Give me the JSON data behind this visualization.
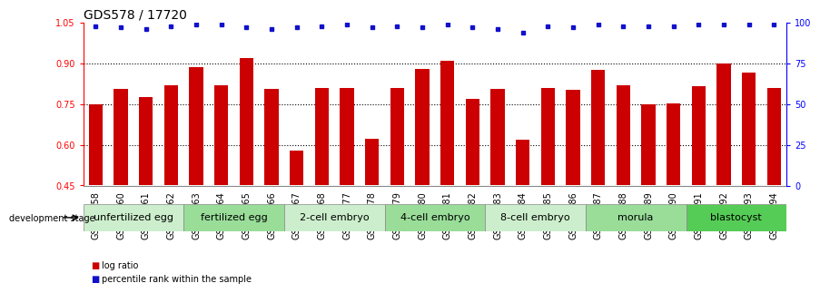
{
  "title": "GDS578 / 17720",
  "samples": [
    "GSM14658",
    "GSM14660",
    "GSM14661",
    "GSM14662",
    "GSM14663",
    "GSM14664",
    "GSM14665",
    "GSM14666",
    "GSM14667",
    "GSM14668",
    "GSM14677",
    "GSM14678",
    "GSM14679",
    "GSM14680",
    "GSM14681",
    "GSM14682",
    "GSM14683",
    "GSM14684",
    "GSM14685",
    "GSM14686",
    "GSM14687",
    "GSM14688",
    "GSM14689",
    "GSM14690",
    "GSM14691",
    "GSM14692",
    "GSM14693",
    "GSM14694"
  ],
  "log_ratio": [
    0.75,
    0.805,
    0.775,
    0.82,
    0.885,
    0.82,
    0.92,
    0.805,
    0.578,
    0.81,
    0.81,
    0.622,
    0.81,
    0.88,
    0.91,
    0.77,
    0.805,
    0.618,
    0.81,
    0.803,
    0.878,
    0.82,
    0.75,
    0.752,
    0.815,
    0.9,
    0.865,
    0.808
  ],
  "percentile": [
    98,
    97,
    96,
    98,
    99,
    99,
    97,
    96,
    97,
    98,
    99,
    97,
    98,
    97,
    99,
    97,
    96,
    94,
    98,
    97,
    99,
    98,
    98,
    98,
    99,
    99,
    99,
    99
  ],
  "ylim_left": [
    0.45,
    1.05
  ],
  "ylim_right": [
    0,
    100
  ],
  "yticks_left": [
    0.45,
    0.6,
    0.75,
    0.9,
    1.05
  ],
  "yticks_right": [
    0,
    25,
    50,
    75,
    100
  ],
  "bar_color": "#cc0000",
  "dot_color": "#1111cc",
  "background_color": "#ffffff",
  "groups": [
    {
      "label": "unfertilized egg",
      "start": 0,
      "end": 4,
      "color": "#cceecc"
    },
    {
      "label": "fertilized egg",
      "start": 4,
      "end": 8,
      "color": "#99dd99"
    },
    {
      "label": "2-cell embryo",
      "start": 8,
      "end": 12,
      "color": "#cceecc"
    },
    {
      "label": "4-cell embryo",
      "start": 12,
      "end": 16,
      "color": "#99dd99"
    },
    {
      "label": "8-cell embryo",
      "start": 16,
      "end": 20,
      "color": "#cceecc"
    },
    {
      "label": "morula",
      "start": 20,
      "end": 24,
      "color": "#99dd99"
    },
    {
      "label": "blastocyst",
      "start": 24,
      "end": 28,
      "color": "#55cc55"
    }
  ],
  "legend_bar_label": "log ratio",
  "legend_dot_label": "percentile rank within the sample",
  "dev_stage_label": "development stage",
  "title_fontsize": 10,
  "tick_fontsize": 7,
  "group_fontsize": 8
}
